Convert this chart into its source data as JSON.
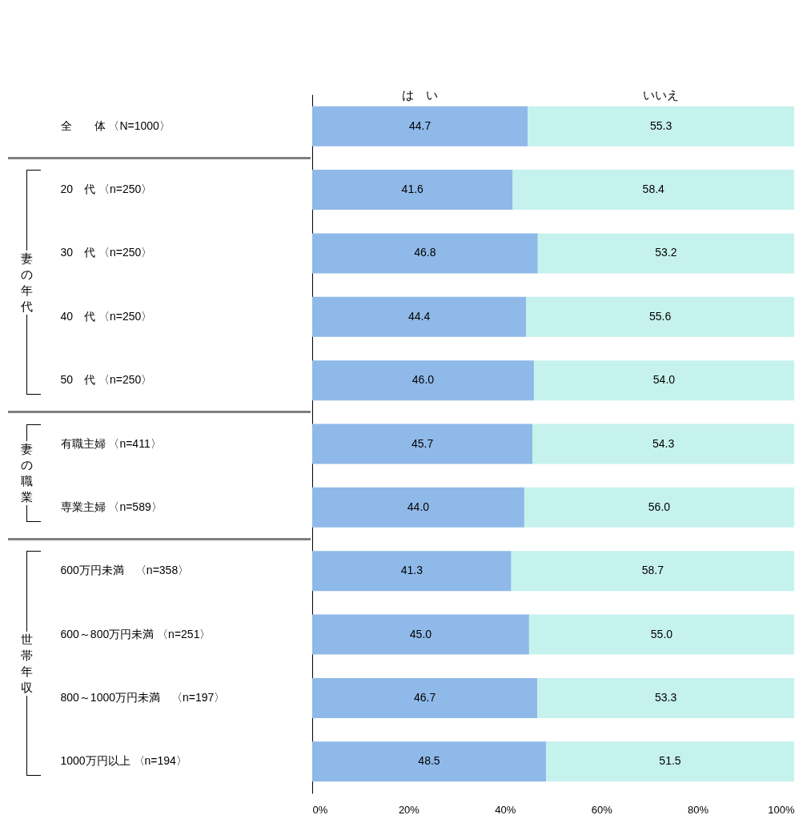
{
  "chart_data": {
    "type": "bar",
    "orientation": "horizontal",
    "stacked": true,
    "categories": [
      "全　　体 〈N=1000〉",
      "20　代 〈n=250〉",
      "30　代 〈n=250〉",
      "40　代 〈n=250〉",
      "50　代 〈n=250〉",
      "有職主婦 〈n=411〉",
      "専業主婦 〈n=589〉",
      "600万円未満　〈n=358〉",
      "600～800万円未満 〈n=251〉",
      "800～1000万円未満　〈n=197〉",
      "1000万円以上 〈n=194〉"
    ],
    "series": [
      {
        "name": "は　い",
        "color": "#8fb9e8",
        "values": [
          44.7,
          41.6,
          46.8,
          44.4,
          46.0,
          45.7,
          44.0,
          41.3,
          45.0,
          46.7,
          48.5
        ],
        "value_labels": [
          "44.7",
          "41.6",
          "46.8",
          "44.4",
          "46.0",
          "45.7",
          "44.0",
          "41.3",
          "45.0",
          "46.7",
          "48.5"
        ]
      },
      {
        "name": "いいえ",
        "color": "#c6f2ee",
        "values": [
          55.3,
          58.4,
          53.2,
          55.6,
          54.0,
          54.3,
          56.0,
          58.7,
          55.0,
          53.3,
          51.5
        ],
        "value_labels": [
          "55.3",
          "58.4",
          "53.2",
          "55.6",
          "54.0",
          "54.3",
          "56.0",
          "58.7",
          "55.0",
          "53.3",
          "51.5"
        ]
      }
    ],
    "xlim": [
      0,
      100
    ],
    "xticks": [
      {
        "value": 0,
        "label": "0%"
      },
      {
        "value": 20,
        "label": "20%"
      },
      {
        "value": 40,
        "label": "40%"
      },
      {
        "value": 60,
        "label": "60%"
      },
      {
        "value": 80,
        "label": "80%"
      },
      {
        "value": 100,
        "label": "100%"
      }
    ],
    "grid": false,
    "annotations": [
      "妻の年代",
      "妻の職業",
      "世帯年収"
    ]
  }
}
